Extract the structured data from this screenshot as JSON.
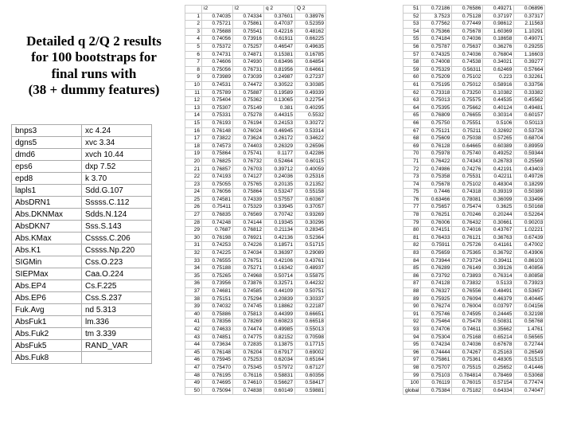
{
  "title_lines": [
    "Detailed q 2/Q 2 results",
    "for 100 bootstraps for",
    "final runs with",
    "(38 + dummy features)"
  ],
  "feature_table": [
    [
      "bnps3",
      "xc 4.24"
    ],
    [
      "dgns5",
      "xvc 3.34"
    ],
    [
      "dmd6",
      "xvch 10.44"
    ],
    [
      "eps6",
      "dxp 7.52"
    ],
    [
      "epd8",
      "k 3.70"
    ],
    [
      "lapls1",
      "Sdd.G.107"
    ],
    [
      "AbsDRN1",
      "Sssss.C.112"
    ],
    [
      "Abs.DKNMax",
      "Sdds.N.124"
    ],
    [
      "AbsDKN7",
      "Sss.S.143"
    ],
    [
      "Abs.KMax",
      "Cssss.C.206"
    ],
    [
      "Abs.K1",
      "Cssss.Np.220"
    ],
    [
      "SIGMin",
      "Css.O.223"
    ],
    [
      "SIEPMax",
      "Caa.O.224"
    ],
    [
      "Abs.EP4",
      "Cs.F.225"
    ],
    [
      "Abs.EP6",
      "Css.S.237"
    ],
    [
      "Fuk.Avg",
      "nd 5.313"
    ],
    [
      "AbsFuk1",
      "lm.336"
    ],
    [
      "Abs.Fuk2",
      "tm 3.339"
    ],
    [
      "AbsFuk5",
      "RAND_VAR"
    ],
    [
      "Abs.Fuk8",
      ""
    ]
  ],
  "block1": {
    "headers": [
      "",
      "i2",
      "l2",
      "q 2",
      "Q 2"
    ],
    "rows": [
      [
        "1",
        "0.74035",
        "0.74334",
        "0.37601",
        "0.38976"
      ],
      [
        "2",
        "0.75721",
        "0.75861",
        "0.47037",
        "0.52359"
      ],
      [
        "3",
        "0.75688",
        "0.75541",
        "0.42216",
        "0.48162"
      ],
      [
        "4",
        "0.74056",
        "0.73916",
        "0.61911",
        "0.66225"
      ],
      [
        "5",
        "0.75372",
        "0.75257",
        "0.46547",
        "0.49635"
      ],
      [
        "6",
        "0.74731",
        "0.74871",
        "0.15381",
        "0.16785"
      ],
      [
        "7",
        "0.74606",
        "0.74930",
        "0.63496",
        "0.64854"
      ],
      [
        "8",
        "0.75056",
        "0.76731",
        "0.81956",
        "0.64661"
      ],
      [
        "9",
        "0.73989",
        "0.73039",
        "0.24987",
        "0.27237"
      ],
      [
        "10",
        "0.74531",
        "0.74472",
        "0.30522",
        "0.30385"
      ],
      [
        "11",
        "0.75789",
        "0.75887",
        "0.19589",
        "0.49339"
      ],
      [
        "12",
        "0.75404",
        "0.75362",
        "0.13065",
        "0.22754"
      ],
      [
        "13",
        "0.75307",
        "0.75149",
        "0.381",
        "0.40295"
      ],
      [
        "14",
        "0.75331",
        "0.75278",
        "0.44315",
        "0.5532"
      ],
      [
        "15",
        "0.76193",
        "0.76194",
        "0.24153",
        "0.30272"
      ],
      [
        "16",
        "0.76148",
        "0.76024",
        "0.46945",
        "0.53314"
      ],
      [
        "17",
        "0.73822",
        "0.73624",
        "0.26172",
        "0.34622"
      ],
      [
        "18",
        "0.74573",
        "0.74403",
        "0.26329",
        "0.26596"
      ],
      [
        "19",
        "0.75864",
        "0.75741",
        "0.1177",
        "0.42286"
      ],
      [
        "20",
        "0.76825",
        "0.76732",
        "0.52464",
        "0.60115"
      ],
      [
        "21",
        "0.76857",
        "0.76703",
        "0.39712",
        "0.40059"
      ],
      [
        "22",
        "0.74193",
        "0.74127",
        "0.24036",
        "0.25316"
      ],
      [
        "23",
        "0.75055",
        "0.75765",
        "0.20135",
        "0.21352"
      ],
      [
        "24",
        "0.76056",
        "0.75864",
        "0.53247",
        "0.55158"
      ],
      [
        "25",
        "0.74581",
        "0.74339",
        "0.57557",
        "0.60367"
      ],
      [
        "26",
        "0.75411",
        "0.75329",
        "0.33945",
        "0.37057"
      ],
      [
        "27",
        "0.76835",
        "0.76569",
        "0.70742",
        "0.93269"
      ],
      [
        "28",
        "0.74248",
        "0.74144",
        "0.19345",
        "0.30296"
      ],
      [
        "29",
        "0.7687",
        "0.76812",
        "0.21134",
        "0.28345"
      ],
      [
        "30",
        "0.76198",
        "0.76921",
        "0.42136",
        "0.52364"
      ],
      [
        "31",
        "0.74253",
        "0.74226",
        "0.18571",
        "0.51715"
      ],
      [
        "32",
        "0.74225",
        "0.74034",
        "0.36397",
        "0.29089"
      ],
      [
        "33",
        "0.76555",
        "0.76751",
        "0.42106",
        "0.43761"
      ],
      [
        "34",
        "0.75188",
        "0.75271",
        "0.16342",
        "0.48937"
      ],
      [
        "35",
        "0.75265",
        "0.74968",
        "0.50714",
        "0.55875"
      ],
      [
        "36",
        "0.73956",
        "0.73876",
        "0.32571",
        "0.44232"
      ],
      [
        "37",
        "0.74681",
        "0.74585",
        "0.44109",
        "0.50751"
      ],
      [
        "38",
        "0.75151",
        "0.75294",
        "0.20839",
        "0.30337"
      ],
      [
        "39",
        "0.74032",
        "0.74745",
        "0.18862",
        "0.22187"
      ],
      [
        "40",
        "0.75886",
        "0.75813",
        "0.44399",
        "0.66651"
      ],
      [
        "41",
        "0.78356",
        "0.78269",
        "0.60823",
        "0.66518"
      ],
      [
        "42",
        "0.74633",
        "0.74474",
        "0.49985",
        "0.55013"
      ],
      [
        "43",
        "0.74851",
        "0.74775",
        "0.82152",
        "0.70598"
      ],
      [
        "44",
        "0.73634",
        "0.72835",
        "0.13875",
        "0.17715"
      ],
      [
        "45",
        "0.76148",
        "0.76204",
        "0.67917",
        "0.69002"
      ],
      [
        "46",
        "0.75945",
        "0.75253",
        "0.62034",
        "0.65164"
      ],
      [
        "47",
        "0.75470",
        "0.75345",
        "0.57972",
        "0.67127"
      ],
      [
        "48",
        "0.76195",
        "0.76116",
        "0.58831",
        "0.60356"
      ],
      [
        "49",
        "0.74695",
        "0.74610",
        "0.56627",
        "0.58417"
      ],
      [
        "50",
        "0.75094",
        "0.74838",
        "0.60149",
        "0.59881"
      ]
    ]
  },
  "block2": {
    "rows": [
      [
        "51",
        "0.72186",
        "0.76586",
        "0.49271",
        "0.06896"
      ],
      [
        "52",
        "3.7523",
        "0.75128",
        "0.37197",
        "0.37317"
      ],
      [
        "53",
        "0.77562",
        "0.77449",
        "0.98612",
        "2.11563"
      ],
      [
        "54",
        "0.75366",
        "0.75678",
        "1.60369",
        "1.10291"
      ],
      [
        "55",
        "0.74184",
        "0.74036",
        "0.18658",
        "0.49071"
      ],
      [
        "56",
        "0.75787",
        "0.75637",
        "0.36276",
        "0.29255"
      ],
      [
        "57",
        "0.74325",
        "0.74036",
        "0.76804",
        "1.16603"
      ],
      [
        "58",
        "0.74008",
        "0.74538",
        "0.34021",
        "0.39277"
      ],
      [
        "59",
        "0.75329",
        "0.56311",
        "0.62469",
        "0.57664"
      ],
      [
        "60",
        "0.75209",
        "0.75102",
        "0.223",
        "0.32261"
      ],
      [
        "61",
        "0.75195",
        "0.75012",
        "0.58916",
        "0.33756"
      ],
      [
        "62",
        "0.73318",
        "0.73250",
        "0.10382",
        "0.33382"
      ],
      [
        "63",
        "0.75013",
        "0.75575",
        "0.44535",
        "0.45562"
      ],
      [
        "64",
        "0.75395",
        "0.75662",
        "0.40124",
        "0.49481"
      ],
      [
        "65",
        "0.76809",
        "0.76655",
        "0.30314",
        "0.60157"
      ],
      [
        "66",
        "0.75750",
        "0.75551",
        "0.5106",
        "0.50113"
      ],
      [
        "67",
        "0.75121",
        "0.75211",
        "0.32692",
        "0.53726"
      ],
      [
        "68",
        "0.75609",
        "0.75038",
        "0.57265",
        "0.68704"
      ],
      [
        "69",
        "0.76128",
        "0.64665",
        "0.60389",
        "0.89959"
      ],
      [
        "70",
        "0.75978",
        "0.75740",
        "0.49252",
        "0.59344"
      ],
      [
        "71",
        "0.76422",
        "0.74343",
        "0.26783",
        "0.25569"
      ],
      [
        "72",
        "0.74986",
        "0.74276",
        "0.42191",
        "0.43403"
      ],
      [
        "73",
        "0.75358",
        "0.75531",
        "0.42211",
        "0.49726"
      ],
      [
        "74",
        "0.75678",
        "0.75102",
        "0.48304",
        "0.18299"
      ],
      [
        "75",
        "0.7446",
        "0.74318",
        "0.39319",
        "0.50389"
      ],
      [
        "76",
        "0.63466",
        "0.78081",
        "0.36099",
        "0.33496"
      ],
      [
        "77",
        "0.75657",
        "0.75474",
        "0.3625",
        "0.50168"
      ],
      [
        "78",
        "0.76251",
        "0.70246",
        "0.20244",
        "0.52264"
      ],
      [
        "79",
        "0.76006",
        "0.76432",
        "0.30661",
        "0.90203"
      ],
      [
        "80",
        "0.74151",
        "0.74016",
        "0.43767",
        "1.02221"
      ],
      [
        "81",
        "0.76433",
        "0.76121",
        "0.36763",
        "0.67439"
      ],
      [
        "82",
        "0.75911",
        "0.75726",
        "0.41161",
        "0.47002"
      ],
      [
        "83",
        "0.75659",
        "0.75365",
        "0.36792",
        "0.43906"
      ],
      [
        "84",
        "0.73944",
        "0.73724",
        "0.39411",
        "0.86103"
      ],
      [
        "85",
        "0.76289",
        "0.76149",
        "0.39126",
        "0.40856"
      ],
      [
        "86",
        "0.73792",
        "0.73893",
        "0.76314",
        "0.80858"
      ],
      [
        "87",
        "0.74128",
        "0.73832",
        "0.5133",
        "0.73923"
      ],
      [
        "88",
        "0.76327",
        "0.76556",
        "0.48491",
        "0.53657"
      ],
      [
        "89",
        "0.75925",
        "0.76094",
        "0.46379",
        "0.40445"
      ],
      [
        "90",
        "0.76274",
        "0.76004",
        "0.03797",
        "0.04156"
      ],
      [
        "91",
        "0.75746",
        "0.74595",
        "0.24445",
        "0.32198"
      ],
      [
        "92",
        "0.75464",
        "0.75478",
        "0.50831",
        "0.56768"
      ],
      [
        "93",
        "0.74706",
        "0.74611",
        "0.35662",
        "1.4761"
      ],
      [
        "94",
        "0.75304",
        "0.75168",
        "0.65214",
        "0.56565"
      ],
      [
        "95",
        "0.74234",
        "0.74036",
        "0.67678",
        "0.72744"
      ],
      [
        "96",
        "0.74444",
        "0.74267",
        "0.25163",
        "0.26549"
      ],
      [
        "97",
        "0.75861",
        "0.75361",
        "0.48305",
        "0.51515"
      ],
      [
        "98",
        "0.75707",
        "0.75515",
        "0.25652",
        "0.41446"
      ],
      [
        "99",
        "0.75103",
        "0.784814",
        "0.78469",
        "0.53068"
      ],
      [
        "100",
        "0.76119",
        "0.76015",
        "0.57154",
        "0.77474"
      ],
      [
        "global",
        "0.75384",
        "0.75182",
        "0.64334",
        "0.74047"
      ]
    ]
  }
}
